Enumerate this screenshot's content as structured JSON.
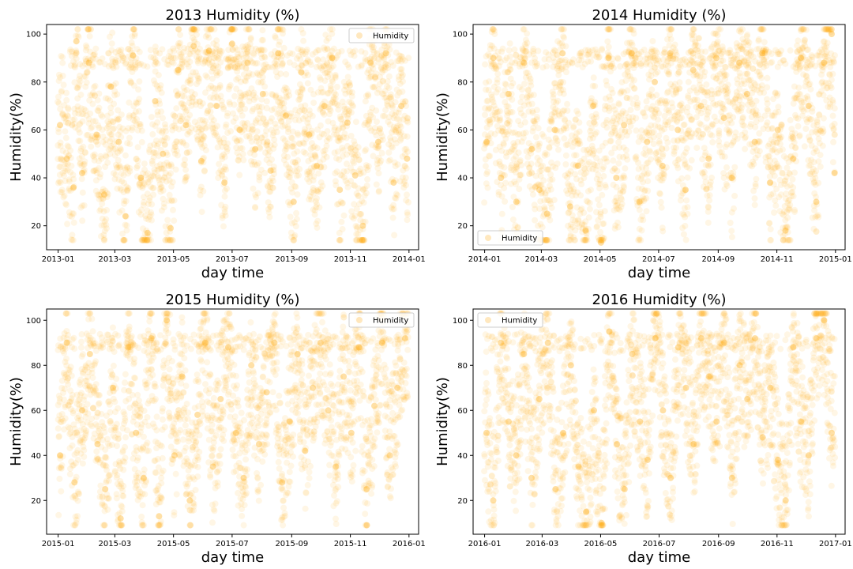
{
  "chart_data": [
    {
      "type": "scatter",
      "title": "2013 Humidity (%)",
      "xlabel": "day time",
      "ylabel": "Humidity(%)",
      "xlim": [
        "2012-12-20",
        "2014-01-11"
      ],
      "ylim": [
        10,
        104
      ],
      "xticks": [
        "2013-01",
        "2013-03",
        "2013-05",
        "2013-07",
        "2013-09",
        "2013-11",
        "2014-01"
      ],
      "yticks": [
        20,
        40,
        60,
        80,
        100
      ],
      "grid": false,
      "legend": {
        "label": "Humidity",
        "placement": "top-right"
      },
      "series": [
        {
          "name": "Humidity",
          "color": "#FFA500",
          "points": [
            {
              "x": "2013-01-03",
              "y": 62
            },
            {
              "x": "2013-01-10",
              "y": 48
            },
            {
              "x": "2013-01-17",
              "y": 36
            },
            {
              "x": "2013-01-20",
              "y": 97
            },
            {
              "x": "2013-01-26",
              "y": 42
            },
            {
              "x": "2013-02-02",
              "y": 88
            },
            {
              "x": "2013-02-10",
              "y": 58
            },
            {
              "x": "2013-02-18",
              "y": 33
            },
            {
              "x": "2013-02-25",
              "y": 78
            },
            {
              "x": "2013-03-05",
              "y": 55
            },
            {
              "x": "2013-03-12",
              "y": 24
            },
            {
              "x": "2013-03-20",
              "y": 91
            },
            {
              "x": "2013-03-28",
              "y": 40
            },
            {
              "x": "2013-04-04",
              "y": 17
            },
            {
              "x": "2013-04-12",
              "y": 72
            },
            {
              "x": "2013-04-20",
              "y": 50
            },
            {
              "x": "2013-04-28",
              "y": 19
            },
            {
              "x": "2013-05-06",
              "y": 85
            },
            {
              "x": "2013-05-14",
              "y": 62
            },
            {
              "x": "2013-05-22",
              "y": 95
            },
            {
              "x": "2013-05-30",
              "y": 47
            },
            {
              "x": "2013-06-07",
              "y": 93
            },
            {
              "x": "2013-06-15",
              "y": 70
            },
            {
              "x": "2013-06-23",
              "y": 38
            },
            {
              "x": "2013-07-01",
              "y": 96
            },
            {
              "x": "2013-07-09",
              "y": 60
            },
            {
              "x": "2013-07-17",
              "y": 88
            },
            {
              "x": "2013-07-25",
              "y": 52
            },
            {
              "x": "2013-08-02",
              "y": 75
            },
            {
              "x": "2013-08-10",
              "y": 43
            },
            {
              "x": "2013-08-18",
              "y": 92
            },
            {
              "x": "2013-08-26",
              "y": 66
            },
            {
              "x": "2013-09-03",
              "y": 30
            },
            {
              "x": "2013-09-11",
              "y": 84
            },
            {
              "x": "2013-09-19",
              "y": 58
            },
            {
              "x": "2013-09-27",
              "y": 45
            },
            {
              "x": "2013-10-05",
              "y": 70
            },
            {
              "x": "2013-10-13",
              "y": 90
            },
            {
              "x": "2013-10-21",
              "y": 35
            },
            {
              "x": "2013-10-29",
              "y": 63
            },
            {
              "x": "2013-11-06",
              "y": 41
            },
            {
              "x": "2013-11-14",
              "y": 20
            },
            {
              "x": "2013-11-22",
              "y": 88
            },
            {
              "x": "2013-11-30",
              "y": 55
            },
            {
              "x": "2013-12-08",
              "y": 92
            },
            {
              "x": "2013-12-16",
              "y": 38
            },
            {
              "x": "2013-12-24",
              "y": 70
            },
            {
              "x": "2013-12-30",
              "y": 48
            }
          ]
        }
      ]
    },
    {
      "type": "scatter",
      "title": "2014 Humidity (%)",
      "xlabel": "day time",
      "ylabel": "Humidity(%)",
      "xlim": [
        "2013-12-20",
        "2015-01-11"
      ],
      "ylim": [
        10,
        104
      ],
      "xticks": [
        "2014-01",
        "2014-03",
        "2014-05",
        "2014-07",
        "2014-09",
        "2014-11",
        "2015-01"
      ],
      "yticks": [
        20,
        40,
        60,
        80,
        100
      ],
      "grid": false,
      "legend": {
        "label": "Humidity",
        "placement": "bottom-left"
      },
      "series": [
        {
          "name": "Humidity",
          "color": "#FFA500",
          "points": [
            {
              "x": "2014-01-03",
              "y": 55
            },
            {
              "x": "2014-01-10",
              "y": 90
            },
            {
              "x": "2014-01-18",
              "y": 40
            },
            {
              "x": "2014-01-26",
              "y": 75
            },
            {
              "x": "2014-02-03",
              "y": 30
            },
            {
              "x": "2014-02-11",
              "y": 88
            },
            {
              "x": "2014-02-19",
              "y": 52
            },
            {
              "x": "2014-02-27",
              "y": 35
            },
            {
              "x": "2014-03-07",
              "y": 25
            },
            {
              "x": "2014-03-15",
              "y": 60
            },
            {
              "x": "2014-03-23",
              "y": 92
            },
            {
              "x": "2014-03-31",
              "y": 28
            },
            {
              "x": "2014-04-08",
              "y": 45
            },
            {
              "x": "2014-04-16",
              "y": 18
            },
            {
              "x": "2014-04-24",
              "y": 70
            },
            {
              "x": "2014-05-02",
              "y": 13
            },
            {
              "x": "2014-05-10",
              "y": 90
            },
            {
              "x": "2014-05-18",
              "y": 40
            },
            {
              "x": "2014-05-26",
              "y": 62
            },
            {
              "x": "2014-06-03",
              "y": 92
            },
            {
              "x": "2014-06-11",
              "y": 30
            },
            {
              "x": "2014-06-19",
              "y": 55
            },
            {
              "x": "2014-06-27",
              "y": 80
            },
            {
              "x": "2014-07-05",
              "y": 45
            },
            {
              "x": "2014-07-13",
              "y": 92
            },
            {
              "x": "2014-07-21",
              "y": 60
            },
            {
              "x": "2014-07-29",
              "y": 35
            },
            {
              "x": "2014-08-06",
              "y": 85
            },
            {
              "x": "2014-08-14",
              "y": 70
            },
            {
              "x": "2014-08-22",
              "y": 48
            },
            {
              "x": "2014-08-30",
              "y": 90
            },
            {
              "x": "2014-09-07",
              "y": 65
            },
            {
              "x": "2014-09-15",
              "y": 40
            },
            {
              "x": "2014-09-23",
              "y": 88
            },
            {
              "x": "2014-10-01",
              "y": 75
            },
            {
              "x": "2014-10-09",
              "y": 55
            },
            {
              "x": "2014-10-17",
              "y": 92
            },
            {
              "x": "2014-10-25",
              "y": 38
            },
            {
              "x": "2014-11-02",
              "y": 60
            },
            {
              "x": "2014-11-10",
              "y": 18
            },
            {
              "x": "2014-11-18",
              "y": 48
            },
            {
              "x": "2014-11-26",
              "y": 90
            },
            {
              "x": "2014-12-04",
              "y": 70
            },
            {
              "x": "2014-12-12",
              "y": 30
            },
            {
              "x": "2014-12-20",
              "y": 88
            },
            {
              "x": "2014-12-28",
              "y": 100
            },
            {
              "x": "2014-12-31",
              "y": 42
            }
          ]
        }
      ]
    },
    {
      "type": "scatter",
      "title": "2015 Humidity (%)",
      "xlabel": "day time",
      "ylabel": "Humidity(%)",
      "xlim": [
        "2014-12-20",
        "2016-01-11"
      ],
      "ylim": [
        5,
        105
      ],
      "xticks": [
        "2015-01",
        "2015-03",
        "2015-05",
        "2015-07",
        "2015-09",
        "2015-11",
        "2016-01"
      ],
      "yticks": [
        20,
        40,
        60,
        80,
        100
      ],
      "grid": false,
      "legend": {
        "label": "Humidity",
        "placement": "top-right"
      },
      "series": [
        {
          "name": "Humidity",
          "color": "#FFA500",
          "points": [
            {
              "x": "2015-01-03",
              "y": 40
            },
            {
              "x": "2015-01-10",
              "y": 90
            },
            {
              "x": "2015-01-18",
              "y": 28
            },
            {
              "x": "2015-01-26",
              "y": 60
            },
            {
              "x": "2015-02-03",
              "y": 85
            },
            {
              "x": "2015-02-11",
              "y": 45
            },
            {
              "x": "2015-02-19",
              "y": 25
            },
            {
              "x": "2015-02-27",
              "y": 70
            },
            {
              "x": "2015-03-07",
              "y": 12
            },
            {
              "x": "2015-03-15",
              "y": 88
            },
            {
              "x": "2015-03-23",
              "y": 50
            },
            {
              "x": "2015-03-31",
              "y": 30
            },
            {
              "x": "2015-04-08",
              "y": 92
            },
            {
              "x": "2015-04-16",
              "y": 13
            },
            {
              "x": "2015-04-24",
              "y": 100
            },
            {
              "x": "2015-05-02",
              "y": 40
            },
            {
              "x": "2015-05-10",
              "y": 75
            },
            {
              "x": "2015-05-18",
              "y": 20
            },
            {
              "x": "2015-05-26",
              "y": 58
            },
            {
              "x": "2015-06-03",
              "y": 90
            },
            {
              "x": "2015-06-11",
              "y": 35
            },
            {
              "x": "2015-06-19",
              "y": 65
            },
            {
              "x": "2015-06-27",
              "y": 88
            },
            {
              "x": "2015-07-05",
              "y": 50
            },
            {
              "x": "2015-07-13",
              "y": 30
            },
            {
              "x": "2015-07-21",
              "y": 80
            },
            {
              "x": "2015-07-29",
              "y": 45
            },
            {
              "x": "2015-08-06",
              "y": 68
            },
            {
              "x": "2015-08-14",
              "y": 90
            },
            {
              "x": "2015-08-22",
              "y": 28
            },
            {
              "x": "2015-08-30",
              "y": 55
            },
            {
              "x": "2015-09-07",
              "y": 85
            },
            {
              "x": "2015-09-15",
              "y": 42
            },
            {
              "x": "2015-09-23",
              "y": 70
            },
            {
              "x": "2015-10-01",
              "y": 90
            },
            {
              "x": "2015-10-09",
              "y": 60
            },
            {
              "x": "2015-10-17",
              "y": 35
            },
            {
              "x": "2015-10-25",
              "y": 75
            },
            {
              "x": "2015-11-02",
              "y": 50
            },
            {
              "x": "2015-11-10",
              "y": 88
            },
            {
              "x": "2015-11-18",
              "y": 25
            },
            {
              "x": "2015-11-26",
              "y": 62
            },
            {
              "x": "2015-12-04",
              "y": 90
            },
            {
              "x": "2015-12-12",
              "y": 40
            },
            {
              "x": "2015-12-20",
              "y": 70
            },
            {
              "x": "2015-12-28",
              "y": 92
            }
          ]
        }
      ]
    },
    {
      "type": "scatter",
      "title": "2016 Humidity (%)",
      "xlabel": "day time",
      "ylabel": "Humidity(%)",
      "xlim": [
        "2015-12-20",
        "2017-01-11"
      ],
      "ylim": [
        5,
        105
      ],
      "xticks": [
        "2016-01",
        "2016-03",
        "2016-05",
        "2016-07",
        "2016-09",
        "2016-11",
        "2017-01"
      ],
      "yticks": [
        20,
        40,
        60,
        80,
        100
      ],
      "grid": false,
      "legend": {
        "label": "Humidity",
        "placement": "top-left"
      },
      "series": [
        {
          "name": "Humidity",
          "color": "#FFA500",
          "points": [
            {
              "x": "2016-01-03",
              "y": 50
            },
            {
              "x": "2016-01-10",
              "y": 20
            },
            {
              "x": "2016-01-18",
              "y": 90
            },
            {
              "x": "2016-01-26",
              "y": 55
            },
            {
              "x": "2016-02-03",
              "y": 40
            },
            {
              "x": "2016-02-11",
              "y": 85
            },
            {
              "x": "2016-02-19",
              "y": 30
            },
            {
              "x": "2016-02-27",
              "y": 65
            },
            {
              "x": "2016-03-07",
              "y": 90
            },
            {
              "x": "2016-03-15",
              "y": 25
            },
            {
              "x": "2016-03-23",
              "y": 50
            },
            {
              "x": "2016-03-31",
              "y": 80
            },
            {
              "x": "2016-04-08",
              "y": 35
            },
            {
              "x": "2016-04-16",
              "y": 15
            },
            {
              "x": "2016-04-24",
              "y": 60
            },
            {
              "x": "2016-05-02",
              "y": 10
            },
            {
              "x": "2016-05-10",
              "y": 95
            },
            {
              "x": "2016-05-18",
              "y": 45
            },
            {
              "x": "2016-05-26",
              "y": 25
            },
            {
              "x": "2016-06-03",
              "y": 85
            },
            {
              "x": "2016-06-11",
              "y": 55
            },
            {
              "x": "2016-06-19",
              "y": 38
            },
            {
              "x": "2016-06-27",
              "y": 92
            },
            {
              "x": "2016-07-05",
              "y": 60
            },
            {
              "x": "2016-07-13",
              "y": 30
            },
            {
              "x": "2016-07-21",
              "y": 88
            },
            {
              "x": "2016-07-29",
              "y": 70
            },
            {
              "x": "2016-08-06",
              "y": 45
            },
            {
              "x": "2016-08-14",
              "y": 92
            },
            {
              "x": "2016-08-22",
              "y": 75
            },
            {
              "x": "2016-08-30",
              "y": 55
            },
            {
              "x": "2016-09-07",
              "y": 90
            },
            {
              "x": "2016-09-15",
              "y": 30
            },
            {
              "x": "2016-09-23",
              "y": 80
            },
            {
              "x": "2016-10-01",
              "y": 65
            },
            {
              "x": "2016-10-09",
              "y": 92
            },
            {
              "x": "2016-10-17",
              "y": 48
            },
            {
              "x": "2016-10-25",
              "y": 70
            },
            {
              "x": "2016-11-02",
              "y": 38
            },
            {
              "x": "2016-11-10",
              "y": 20
            },
            {
              "x": "2016-11-18",
              "y": 88
            },
            {
              "x": "2016-11-26",
              "y": 55
            },
            {
              "x": "2016-12-04",
              "y": 40
            },
            {
              "x": "2016-12-12",
              "y": 92
            },
            {
              "x": "2016-12-20",
              "y": 100
            },
            {
              "x": "2016-12-28",
              "y": 50
            }
          ]
        }
      ]
    }
  ]
}
